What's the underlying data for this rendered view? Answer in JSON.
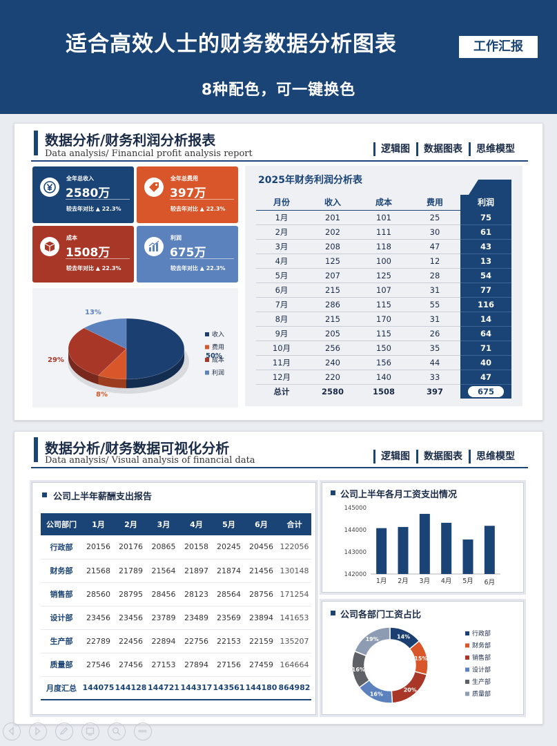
{
  "banner": {
    "title": "适合高效人士的财务数据分析图表",
    "badge": "工作汇报",
    "subtitle": "8种配色，可一键换色"
  },
  "section1": {
    "title": "数据分析/财务利润分析报表",
    "subtitle_en": "Data analysis/ Financial profit analysis report",
    "tabs": [
      "逻辑图",
      "数据图表",
      "思维模型"
    ]
  },
  "section2": {
    "title": "数据分析/财务数据可视化分析",
    "subtitle_en": "Data analysis/ Visual analysis of financial data",
    "tabs": [
      "逻辑图",
      "数据图表",
      "思维模型"
    ]
  },
  "kpis": [
    {
      "label": "全年总收入",
      "value": "2580万",
      "compare": "较去年对比 ▲ 22.3%",
      "color": "#1b4476",
      "icon": "yen-icon"
    },
    {
      "label": "全年总费用",
      "value": "397万",
      "compare": "较去年对比 ▲ 22.3%",
      "color": "#d9562a",
      "icon": "price-tag-icon"
    },
    {
      "label": "成本",
      "value": "1508万",
      "compare": "较去年对比 ▲ 22.3%",
      "color": "#a83728",
      "icon": "box-icon"
    },
    {
      "label": "利润",
      "value": "675万",
      "compare": "较去年对比 ▲ 22.3%",
      "color": "#5b82bd",
      "icon": "bar-chart-icon"
    }
  ],
  "profit_table": {
    "title": "2025年财务利润分析表",
    "headers": [
      "月份",
      "收入",
      "成本",
      "费用",
      "利润"
    ],
    "rows": [
      [
        "1月",
        "201",
        "101",
        "25",
        "75"
      ],
      [
        "2月",
        "202",
        "111",
        "30",
        "61"
      ],
      [
        "3月",
        "208",
        "118",
        "47",
        "43"
      ],
      [
        "4月",
        "125",
        "100",
        "12",
        "13"
      ],
      [
        "5月",
        "207",
        "125",
        "28",
        "54"
      ],
      [
        "6月",
        "215",
        "107",
        "31",
        "77"
      ],
      [
        "7月",
        "286",
        "115",
        "55",
        "116"
      ],
      [
        "8月",
        "215",
        "170",
        "31",
        "14"
      ],
      [
        "9月",
        "205",
        "115",
        "26",
        "64"
      ],
      [
        "10月",
        "256",
        "150",
        "35",
        "71"
      ],
      [
        "11月",
        "240",
        "156",
        "44",
        "40"
      ],
      [
        "12月",
        "220",
        "140",
        "33",
        "47"
      ]
    ],
    "total": [
      "总计",
      "2580",
      "1508",
      "397",
      "675"
    ]
  },
  "salary_table": {
    "title": "公司上半年薪酬支出报告",
    "headers": [
      "公司部门",
      "1月",
      "2月",
      "3月",
      "4月",
      "5月",
      "6月",
      "合计"
    ],
    "rows": [
      [
        "行政部",
        "20156",
        "20176",
        "20865",
        "20158",
        "20245",
        "20456",
        "122056"
      ],
      [
        "财务部",
        "21568",
        "21789",
        "21564",
        "21897",
        "21874",
        "21456",
        "130148"
      ],
      [
        "销售部",
        "28560",
        "28795",
        "28456",
        "28123",
        "28564",
        "28756",
        "171254"
      ],
      [
        "设计部",
        "23456",
        "23456",
        "23789",
        "23489",
        "23569",
        "23894",
        "141653"
      ],
      [
        "生产部",
        "22789",
        "22456",
        "22894",
        "22756",
        "22153",
        "22159",
        "135207"
      ],
      [
        "质量部",
        "27546",
        "27456",
        "27153",
        "27894",
        "27156",
        "27459",
        "164664"
      ]
    ],
    "total": [
      "月度汇总",
      "144075",
      "144128",
      "144721",
      "144317",
      "143561",
      "144180",
      "864982"
    ]
  },
  "bar_panel_title": "公司上半年各月工资支出情况",
  "donut_panel_title": "公司各部门工资占比",
  "chart_data": [
    {
      "type": "pie",
      "categories": [
        "收入",
        "费用",
        "成本",
        "利润"
      ],
      "values": [
        50,
        8,
        29,
        13
      ],
      "value_labels": [
        "50%",
        "8%",
        "29%",
        "13%"
      ],
      "colors": [
        "#1b3f70",
        "#d9562a",
        "#a83728",
        "#5b82bd"
      ],
      "legend": "right"
    },
    {
      "type": "bar",
      "categories": [
        "1月",
        "2月",
        "3月",
        "4月",
        "5月",
        "6月"
      ],
      "values": [
        144075,
        144128,
        144721,
        144317,
        143561,
        144180
      ],
      "ylim": [
        142000,
        145000
      ],
      "yticks": [
        "145000",
        "144000",
        "143000",
        "142000"
      ],
      "color": "#1b4476"
    },
    {
      "type": "pie",
      "categories": [
        "行政部",
        "财务部",
        "销售部",
        "设计部",
        "生产部",
        "质量部"
      ],
      "values": [
        14,
        15,
        20,
        16,
        16,
        19
      ],
      "value_labels": [
        "14%",
        "15%",
        "20%",
        "16%",
        "16%",
        "19%"
      ],
      "colors": [
        "#1b3f70",
        "#d9562a",
        "#a83728",
        "#5b82bd",
        "#5e6166",
        "#8d9cb3"
      ],
      "legend": "right"
    }
  ]
}
